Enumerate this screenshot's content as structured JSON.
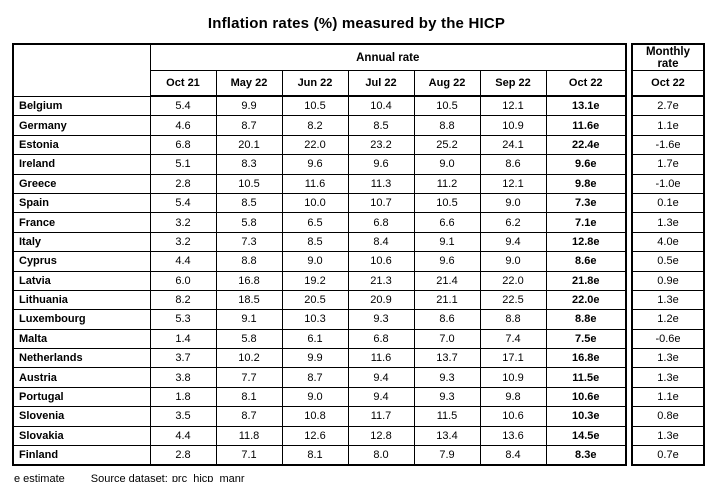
{
  "title": "Inflation rates (%) measured by the HICP",
  "table": {
    "annual_group_label": "Annual rate",
    "monthly_group_label": "Monthly rate",
    "annual_columns": [
      "Oct 21",
      "May 22",
      "Jun 22",
      "Jul 22",
      "Aug 22",
      "Sep 22",
      "Oct 22"
    ],
    "monthly_column": "Oct 22",
    "rows": [
      {
        "country": "Belgium",
        "annual": [
          "5.4",
          "9.9",
          "10.5",
          "10.4",
          "10.5",
          "12.1",
          "13.1e"
        ],
        "monthly": "2.7e"
      },
      {
        "country": "Germany",
        "annual": [
          "4.6",
          "8.7",
          "8.2",
          "8.5",
          "8.8",
          "10.9",
          "11.6e"
        ],
        "monthly": "1.1e"
      },
      {
        "country": "Estonia",
        "annual": [
          "6.8",
          "20.1",
          "22.0",
          "23.2",
          "25.2",
          "24.1",
          "22.4e"
        ],
        "monthly": "-1.6e"
      },
      {
        "country": "Ireland",
        "annual": [
          "5.1",
          "8.3",
          "9.6",
          "9.6",
          "9.0",
          "8.6",
          "9.6e"
        ],
        "monthly": "1.7e"
      },
      {
        "country": "Greece",
        "annual": [
          "2.8",
          "10.5",
          "11.6",
          "11.3",
          "11.2",
          "12.1",
          "9.8e"
        ],
        "monthly": "-1.0e"
      },
      {
        "country": "Spain",
        "annual": [
          "5.4",
          "8.5",
          "10.0",
          "10.7",
          "10.5",
          "9.0",
          "7.3e"
        ],
        "monthly": "0.1e"
      },
      {
        "country": "France",
        "annual": [
          "3.2",
          "5.8",
          "6.5",
          "6.8",
          "6.6",
          "6.2",
          "7.1e"
        ],
        "monthly": "1.3e"
      },
      {
        "country": "Italy",
        "annual": [
          "3.2",
          "7.3",
          "8.5",
          "8.4",
          "9.1",
          "9.4",
          "12.8e"
        ],
        "monthly": "4.0e"
      },
      {
        "country": "Cyprus",
        "annual": [
          "4.4",
          "8.8",
          "9.0",
          "10.6",
          "9.6",
          "9.0",
          "8.6e"
        ],
        "monthly": "0.5e"
      },
      {
        "country": "Latvia",
        "annual": [
          "6.0",
          "16.8",
          "19.2",
          "21.3",
          "21.4",
          "22.0",
          "21.8e"
        ],
        "monthly": "0.9e"
      },
      {
        "country": "Lithuania",
        "annual": [
          "8.2",
          "18.5",
          "20.5",
          "20.9",
          "21.1",
          "22.5",
          "22.0e"
        ],
        "monthly": "1.3e"
      },
      {
        "country": "Luxembourg",
        "annual": [
          "5.3",
          "9.1",
          "10.3",
          "9.3",
          "8.6",
          "8.8",
          "8.8e"
        ],
        "monthly": "1.2e"
      },
      {
        "country": "Malta",
        "annual": [
          "1.4",
          "5.8",
          "6.1",
          "6.8",
          "7.0",
          "7.4",
          "7.5e"
        ],
        "monthly": "-0.6e"
      },
      {
        "country": "Netherlands",
        "annual": [
          "3.7",
          "10.2",
          "9.9",
          "11.6",
          "13.7",
          "17.1",
          "16.8e"
        ],
        "monthly": "1.3e"
      },
      {
        "country": "Austria",
        "annual": [
          "3.8",
          "7.7",
          "8.7",
          "9.4",
          "9.3",
          "10.9",
          "11.5e"
        ],
        "monthly": "1.3e"
      },
      {
        "country": "Portugal",
        "annual": [
          "1.8",
          "8.1",
          "9.0",
          "9.4",
          "9.3",
          "9.8",
          "10.6e"
        ],
        "monthly": "1.1e"
      },
      {
        "country": "Slovenia",
        "annual": [
          "3.5",
          "8.7",
          "10.8",
          "11.7",
          "11.5",
          "10.6",
          "10.3e"
        ],
        "monthly": "0.8e"
      },
      {
        "country": "Slovakia",
        "annual": [
          "4.4",
          "11.8",
          "12.6",
          "12.8",
          "13.4",
          "13.6",
          "14.5e"
        ],
        "monthly": "1.3e"
      },
      {
        "country": "Finland",
        "annual": [
          "2.8",
          "7.1",
          "8.1",
          "8.0",
          "7.9",
          "8.4",
          "8.3e"
        ],
        "monthly": "0.7e"
      }
    ]
  },
  "footer": {
    "estimate_note": "e estimate",
    "source_label": "Source dataset:",
    "source_link": "prc_hicp_manr"
  },
  "chart_data": {
    "type": "table",
    "title": "Inflation rates (%) measured by the HICP",
    "column_groups": [
      "Annual rate",
      "Monthly rate"
    ],
    "categories": [
      "Belgium",
      "Germany",
      "Estonia",
      "Ireland",
      "Greece",
      "Spain",
      "France",
      "Italy",
      "Cyprus",
      "Latvia",
      "Lithuania",
      "Luxembourg",
      "Malta",
      "Netherlands",
      "Austria",
      "Portugal",
      "Slovenia",
      "Slovakia",
      "Finland"
    ],
    "series": [
      {
        "name": "Annual rate Oct 21",
        "values": [
          5.4,
          4.6,
          6.8,
          5.1,
          2.8,
          5.4,
          3.2,
          3.2,
          4.4,
          6.0,
          8.2,
          5.3,
          1.4,
          3.7,
          3.8,
          1.8,
          3.5,
          4.4,
          2.8
        ]
      },
      {
        "name": "Annual rate May 22",
        "values": [
          9.9,
          8.7,
          20.1,
          8.3,
          10.5,
          8.5,
          5.8,
          7.3,
          8.8,
          16.8,
          18.5,
          9.1,
          5.8,
          10.2,
          7.7,
          8.1,
          8.7,
          11.8,
          7.1
        ]
      },
      {
        "name": "Annual rate Jun 22",
        "values": [
          10.5,
          8.2,
          22.0,
          9.6,
          11.6,
          10.0,
          6.5,
          8.5,
          9.0,
          19.2,
          20.5,
          10.3,
          6.1,
          9.9,
          8.7,
          9.0,
          10.8,
          12.6,
          8.1
        ]
      },
      {
        "name": "Annual rate Jul 22",
        "values": [
          10.4,
          8.5,
          23.2,
          9.6,
          11.3,
          10.7,
          6.8,
          8.4,
          10.6,
          21.3,
          20.9,
          9.3,
          6.8,
          11.6,
          9.4,
          9.4,
          11.7,
          12.8,
          8.0
        ]
      },
      {
        "name": "Annual rate Aug 22",
        "values": [
          10.5,
          8.8,
          25.2,
          9.0,
          11.2,
          10.5,
          6.6,
          9.1,
          9.6,
          21.4,
          21.1,
          8.6,
          7.0,
          13.7,
          9.3,
          9.3,
          11.5,
          13.4,
          7.9
        ]
      },
      {
        "name": "Annual rate Sep 22",
        "values": [
          12.1,
          10.9,
          24.1,
          8.6,
          12.1,
          9.0,
          6.2,
          9.4,
          9.0,
          22.0,
          22.5,
          8.8,
          7.4,
          17.1,
          10.9,
          9.8,
          10.6,
          13.6,
          8.4
        ]
      },
      {
        "name": "Annual rate Oct 22 (estimate)",
        "values": [
          13.1,
          11.6,
          22.4,
          9.6,
          9.8,
          7.3,
          7.1,
          12.8,
          8.6,
          21.8,
          22.0,
          8.8,
          7.5,
          16.8,
          11.5,
          10.6,
          10.3,
          14.5,
          8.3
        ]
      },
      {
        "name": "Monthly rate Oct 22 (estimate)",
        "values": [
          2.7,
          1.1,
          -1.6,
          1.7,
          -1.0,
          0.1,
          1.3,
          4.0,
          0.5,
          0.9,
          1.3,
          1.2,
          -0.6,
          1.3,
          1.3,
          1.1,
          0.8,
          1.3,
          0.7
        ]
      }
    ],
    "note": "e estimate",
    "source": "prc_hicp_manr"
  }
}
